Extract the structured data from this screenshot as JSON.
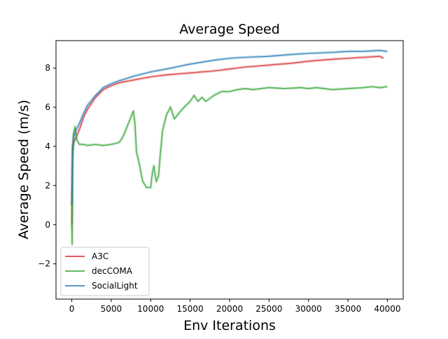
{
  "chart_data": {
    "type": "line",
    "title": "Average Speed",
    "xlabel": "Env Iterations",
    "ylabel": "Average Speed (m/s)",
    "xlim": [
      -2000,
      42000
    ],
    "ylim": [
      -3.8,
      9.4
    ],
    "xticks": [
      0,
      5000,
      10000,
      15000,
      20000,
      25000,
      30000,
      35000,
      40000
    ],
    "yticks": [
      -2,
      0,
      2,
      4,
      6,
      8
    ],
    "grid": false,
    "legend_position": "lower-left",
    "series": [
      {
        "name": "A3C",
        "color": "#d62728",
        "x": [
          0,
          100,
          250,
          500,
          1000,
          1500,
          2000,
          3000,
          4000,
          5000,
          6000,
          8000,
          10000,
          12000,
          15000,
          18000,
          20000,
          22000,
          25000,
          28000,
          30000,
          33000,
          35000,
          37000,
          39000,
          39500
        ],
        "y": [
          0.0,
          4.0,
          4.2,
          4.4,
          4.9,
          5.5,
          5.9,
          6.5,
          6.9,
          7.1,
          7.25,
          7.4,
          7.55,
          7.65,
          7.75,
          7.85,
          7.95,
          8.05,
          8.15,
          8.25,
          8.35,
          8.45,
          8.5,
          8.55,
          8.6,
          8.5
        ]
      },
      {
        "name": "decCOMA",
        "color": "#2ca02c",
        "x": [
          0,
          50,
          100,
          200,
          400,
          600,
          800,
          1000,
          1500,
          2000,
          3000,
          4000,
          5000,
          6000,
          6500,
          7000,
          7500,
          7800,
          8000,
          8200,
          8500,
          9000,
          9500,
          10000,
          10200,
          10400,
          10700,
          11000,
          11200,
          11500,
          12000,
          12500,
          13000,
          14000,
          15000,
          15500,
          16000,
          16500,
          17000,
          18000,
          19000,
          20000,
          21000,
          22000,
          23000,
          25000,
          27000,
          29000,
          30000,
          31000,
          33000,
          35000,
          37000,
          38000,
          39000,
          40000
        ],
        "y": [
          0.0,
          -1.0,
          3.8,
          4.6,
          5.0,
          4.4,
          4.2,
          4.1,
          4.1,
          4.05,
          4.1,
          4.05,
          4.1,
          4.2,
          4.5,
          5.0,
          5.5,
          5.8,
          5.2,
          3.7,
          3.2,
          2.2,
          1.9,
          1.9,
          2.6,
          3.0,
          2.2,
          2.5,
          3.5,
          4.8,
          5.6,
          6.0,
          5.4,
          5.9,
          6.3,
          6.6,
          6.3,
          6.5,
          6.3,
          6.6,
          6.8,
          6.8,
          6.9,
          6.95,
          6.9,
          7.0,
          6.95,
          7.0,
          6.95,
          7.0,
          6.9,
          6.95,
          7.0,
          7.05,
          7.0,
          7.05
        ]
      },
      {
        "name": "SocialLight",
        "color": "#1f77b4",
        "x": [
          0,
          100,
          250,
          500,
          1000,
          1500,
          2000,
          3000,
          4000,
          5000,
          6000,
          8000,
          10000,
          12000,
          15000,
          18000,
          20000,
          22000,
          25000,
          28000,
          30000,
          33000,
          35000,
          37000,
          39000,
          40000
        ],
        "y": [
          1.0,
          3.5,
          4.5,
          4.8,
          5.2,
          5.7,
          6.1,
          6.6,
          7.0,
          7.2,
          7.35,
          7.6,
          7.8,
          7.95,
          8.2,
          8.4,
          8.5,
          8.55,
          8.6,
          8.7,
          8.75,
          8.8,
          8.85,
          8.85,
          8.9,
          8.85
        ]
      }
    ]
  }
}
